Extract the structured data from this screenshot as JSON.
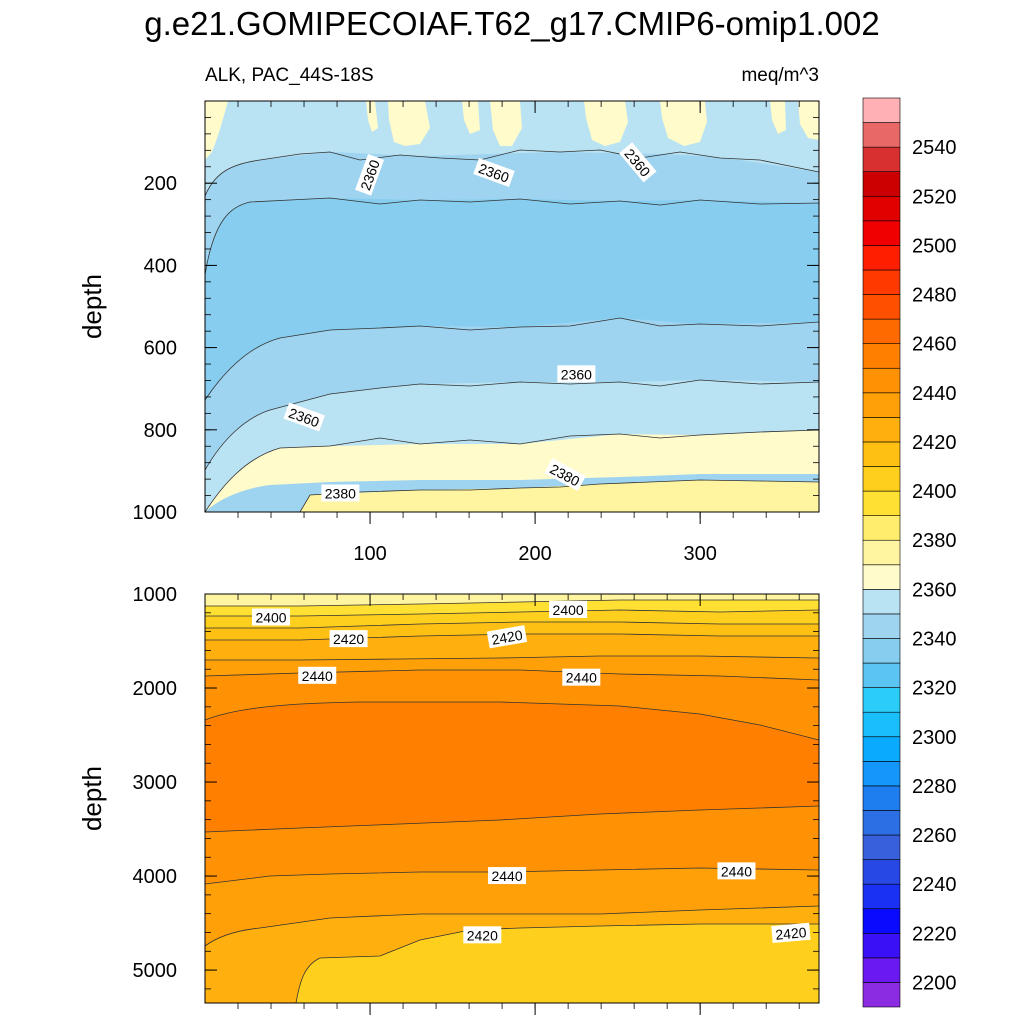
{
  "chart_data": {
    "type": "heatmap",
    "title": "g.e21.GOMIPECOIAF.T62_g17.CMIP6-omip1.002",
    "subtitle_left": "ALK, PAC_44S-18S",
    "subtitle_right": "meq/m^3",
    "ylabel": "depth",
    "xlim": [
      0,
      372
    ],
    "x_ticks": [
      "100",
      "200",
      "300"
    ],
    "panels": [
      {
        "id": "upper",
        "ylim": [
          0,
          1000
        ],
        "y_ticks": [
          "200",
          "400",
          "600",
          "800",
          "1000"
        ],
        "contour_labels": [
          {
            "text": "2360",
            "x": 100,
            "y": 180,
            "angle": 70
          },
          {
            "text": "2360",
            "x": 175,
            "y": 175,
            "angle": -20
          },
          {
            "text": "2360",
            "x": 262,
            "y": 150,
            "angle": -50
          },
          {
            "text": "2360",
            "x": 60,
            "y": 770,
            "angle": -20
          },
          {
            "text": "2360",
            "x": 225,
            "y": 665,
            "angle": 0
          },
          {
            "text": "2380",
            "x": 82,
            "y": 955,
            "angle": 0
          },
          {
            "text": "2380",
            "x": 218,
            "y": 910,
            "angle": -28
          }
        ]
      },
      {
        "id": "lower",
        "ylim": [
          1000,
          5350
        ],
        "y_ticks": [
          "1000",
          "2000",
          "3000",
          "4000",
          "5000"
        ],
        "contour_labels": [
          {
            "text": "2400",
            "x": 40,
            "y": 1250,
            "angle": 0
          },
          {
            "text": "2400",
            "x": 220,
            "y": 1170,
            "angle": 0
          },
          {
            "text": "2420",
            "x": 87,
            "y": 1480,
            "angle": 0
          },
          {
            "text": "2420",
            "x": 183,
            "y": 1460,
            "angle": 10
          },
          {
            "text": "2440",
            "x": 68,
            "y": 1870,
            "angle": 0
          },
          {
            "text": "2440",
            "x": 228,
            "y": 1890,
            "angle": 0
          },
          {
            "text": "2440",
            "x": 183,
            "y": 4000,
            "angle": 0
          },
          {
            "text": "2440",
            "x": 322,
            "y": 3950,
            "angle": 0
          },
          {
            "text": "2420",
            "x": 168,
            "y": 4630,
            "angle": 0
          },
          {
            "text": "2420",
            "x": 355,
            "y": 4610,
            "angle": 5
          }
        ]
      }
    ],
    "colorbar": {
      "levels": [
        2190,
        2200,
        2210,
        2220,
        2230,
        2240,
        2250,
        2260,
        2270,
        2280,
        2290,
        2300,
        2310,
        2320,
        2330,
        2340,
        2350,
        2360,
        2370,
        2380,
        2390,
        2400,
        2410,
        2420,
        2430,
        2440,
        2450,
        2460,
        2470,
        2480,
        2490,
        2500,
        2510,
        2520,
        2530,
        2540,
        2550,
        2560
      ],
      "colors": [
        "#8B2BE2",
        "#6A1AF0",
        "#3A10F6",
        "#0A0AFF",
        "#1A30F2",
        "#2848E6",
        "#3860DC",
        "#2C6EE4",
        "#1E7EF0",
        "#1496FA",
        "#0AAAFF",
        "#1ABEFA",
        "#2CCCF8",
        "#5CC4F2",
        "#86CDEF",
        "#9FD4F0",
        "#B9E2F3",
        "#FFFBCB",
        "#FFF5A0",
        "#FFEE6E",
        "#FFE033",
        "#FFCF1E",
        "#FFC014",
        "#FFB00E",
        "#FFA008",
        "#FF9204",
        "#FF8000",
        "#FF6A00",
        "#FF5000",
        "#FF3A00",
        "#FF1E00",
        "#F00000",
        "#E00000",
        "#CC0000",
        "#D83030",
        "#E86868",
        "#FFB0B4"
      ],
      "tick_labels": [
        "2200",
        "2220",
        "2240",
        "2260",
        "2280",
        "2300",
        "2320",
        "2340",
        "2360",
        "2380",
        "2400",
        "2420",
        "2440",
        "2460",
        "2480",
        "2500",
        "2520",
        "2540"
      ]
    }
  }
}
